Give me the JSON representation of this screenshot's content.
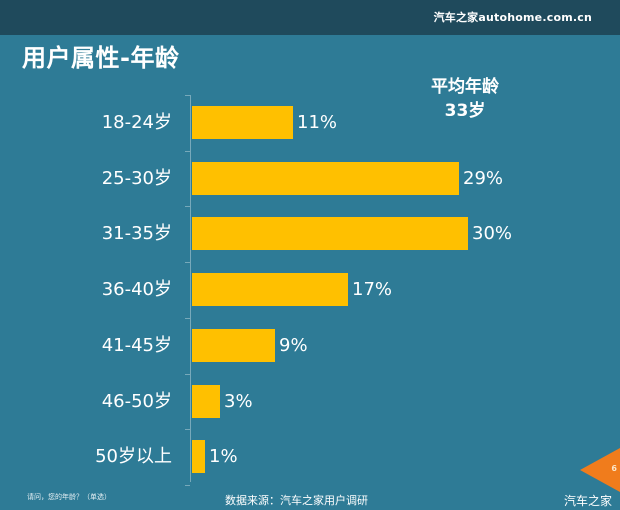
{
  "header": {
    "brand": "汽车之家autohome.com.cn",
    "title": "用户属性-年龄"
  },
  "summary": {
    "label": "平均年龄",
    "value": "33岁"
  },
  "footer": {
    "question": "请问，您的年龄？（单选）",
    "source": "数据来源：汽车之家用户调研",
    "page_number": "6",
    "watermark": "汽车之家"
  },
  "colors": {
    "background": "#2e7b96",
    "top_band": "#1f4a5c",
    "bar": "#ffc000",
    "page_marker": "#f07c1c"
  },
  "chart_data": {
    "type": "bar",
    "orientation": "horizontal",
    "title": "用户属性-年龄",
    "categories": [
      "18-24岁",
      "25-30岁",
      "31-35岁",
      "36-40岁",
      "41-45岁",
      "46-50岁",
      "50岁以上"
    ],
    "values": [
      11,
      29,
      30,
      17,
      9,
      3,
      1
    ],
    "value_labels": [
      "11%",
      "29%",
      "30%",
      "17%",
      "9%",
      "3%",
      "1%"
    ],
    "unit": "%",
    "xlabel": "",
    "ylabel": "",
    "xlim": [
      0,
      30
    ],
    "grid": false,
    "legend": "none",
    "annotations": [
      "平均年龄 33岁"
    ]
  }
}
